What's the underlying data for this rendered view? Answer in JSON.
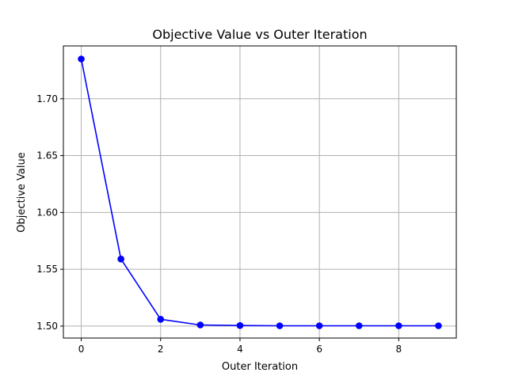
{
  "chart_data": {
    "type": "line",
    "title": "Objective Value vs Outer Iteration",
    "xlabel": "Outer Iteration",
    "ylabel": "Objective Value",
    "xlim": [
      -0.45,
      9.45
    ],
    "ylim": [
      1.4895,
      1.7465
    ],
    "xticks": [
      0,
      2,
      4,
      6,
      8
    ],
    "yticks": [
      1.5,
      1.55,
      1.6,
      1.65,
      1.7
    ],
    "grid": true,
    "series": [
      {
        "color": "#0000ff",
        "marker": "circle",
        "x": [
          0,
          1,
          2,
          3,
          4,
          5,
          6,
          7,
          8,
          9
        ],
        "y": [
          1.735,
          1.559,
          1.506,
          1.501,
          1.5005,
          1.5003,
          1.5003,
          1.5003,
          1.5003,
          1.5003
        ]
      }
    ]
  }
}
